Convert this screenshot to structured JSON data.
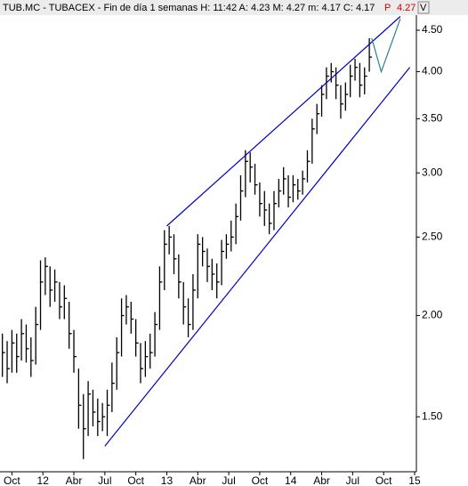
{
  "chart_data": {
    "type": "hlc",
    "header": {
      "title": "TUB.MC - TUBACEX - Fin de día 1 semanas  H: 11:42  A: 4.23  M: 4.27  m: 4.17  C: 4.17",
      "price_flag": "P",
      "price": "4.27",
      "mode": "V"
    },
    "log_scale": true,
    "color": "#000000",
    "ylim": [
      1.283,
      4.686
    ],
    "yticks": [
      {
        "value": 1.5,
        "label": "1.50"
      },
      {
        "value": 2.0,
        "label": "2.00"
      },
      {
        "value": 2.5,
        "label": "2.50"
      },
      {
        "value": 3.0,
        "label": "3.00"
      },
      {
        "value": 3.5,
        "label": "3.50"
      },
      {
        "value": 4.0,
        "label": "4.00"
      },
      {
        "value": 4.5,
        "label": "4.50"
      }
    ],
    "xlim": [
      0,
      175.5
    ],
    "xticks": [
      {
        "value": 5,
        "label": "Oct"
      },
      {
        "value": 18,
        "label": "12"
      },
      {
        "value": 31,
        "label": "Abr"
      },
      {
        "value": 44,
        "label": "Jul"
      },
      {
        "value": 57,
        "label": "Oct"
      },
      {
        "value": 70,
        "label": "13"
      },
      {
        "value": 83,
        "label": "Abr"
      },
      {
        "value": 96,
        "label": "Jul"
      },
      {
        "value": 109,
        "label": "Oct"
      },
      {
        "value": 122,
        "label": "14"
      },
      {
        "value": 135,
        "label": "Abr"
      },
      {
        "value": 148,
        "label": "Jul"
      },
      {
        "value": 161,
        "label": "Oct"
      },
      {
        "value": 174,
        "label": "15"
      }
    ],
    "x": [
      1,
      3,
      5,
      7,
      9,
      11,
      13,
      15,
      17,
      19,
      21,
      23,
      25,
      27,
      29,
      31,
      33,
      35,
      37,
      39,
      41,
      43,
      45,
      47,
      49,
      51,
      53,
      55,
      57,
      59,
      61,
      63,
      65,
      67,
      69,
      71,
      73,
      75,
      77,
      79,
      81,
      83,
      85,
      87,
      89,
      91,
      93,
      95,
      97,
      99,
      101,
      103,
      105,
      107,
      109,
      111,
      113,
      115,
      117,
      119,
      121,
      123,
      125,
      127,
      129,
      131,
      133,
      135,
      137,
      139,
      141,
      143,
      145,
      147,
      149,
      151,
      153,
      155
    ],
    "high": [
      1.9,
      1.86,
      1.92,
      1.9,
      1.98,
      1.95,
      1.88,
      2.05,
      2.34,
      2.36,
      2.3,
      2.28,
      2.2,
      2.18,
      2.08,
      1.92,
      1.72,
      1.6,
      1.66,
      1.62,
      1.58,
      1.56,
      1.62,
      1.75,
      1.88,
      2.1,
      2.12,
      2.08,
      1.98,
      1.85,
      1.86,
      1.9,
      2.02,
      2.3,
      2.55,
      2.58,
      2.52,
      2.38,
      2.2,
      2.1,
      2.25,
      2.52,
      2.5,
      2.42,
      2.35,
      2.32,
      2.48,
      2.52,
      2.62,
      2.75,
      2.98,
      3.2,
      3.18,
      3.08,
      2.92,
      2.85,
      2.75,
      2.85,
      2.95,
      3.05,
      2.98,
      2.98,
      2.95,
      3.02,
      3.2,
      3.5,
      3.65,
      3.85,
      4.05,
      4.1,
      4.05,
      3.85,
      3.88,
      4.08,
      4.15,
      4.1,
      4.05,
      4.4
    ],
    "low": [
      1.68,
      1.65,
      1.7,
      1.7,
      1.76,
      1.75,
      1.68,
      1.74,
      1.92,
      2.12,
      2.05,
      2.08,
      1.98,
      1.98,
      1.82,
      1.7,
      1.45,
      1.33,
      1.42,
      1.46,
      1.42,
      1.44,
      1.42,
      1.52,
      1.62,
      1.78,
      1.95,
      1.9,
      1.78,
      1.65,
      1.68,
      1.72,
      1.78,
      1.92,
      2.15,
      2.38,
      2.25,
      2.1,
      1.95,
      1.88,
      1.92,
      2.1,
      2.3,
      2.2,
      2.15,
      2.1,
      2.18,
      2.35,
      2.4,
      2.45,
      2.62,
      2.8,
      2.92,
      2.82,
      2.65,
      2.58,
      2.52,
      2.55,
      2.72,
      2.82,
      2.72,
      2.76,
      2.78,
      2.82,
      2.92,
      3.08,
      3.35,
      3.52,
      3.7,
      3.88,
      3.7,
      3.5,
      3.58,
      3.72,
      3.9,
      3.72,
      3.75,
      4.0
    ],
    "close": [
      1.8,
      1.72,
      1.85,
      1.78,
      1.9,
      1.82,
      1.76,
      1.95,
      2.2,
      2.3,
      2.15,
      2.2,
      2.05,
      2.1,
      1.9,
      1.78,
      1.55,
      1.45,
      1.6,
      1.52,
      1.48,
      1.5,
      1.55,
      1.65,
      1.8,
      2.0,
      2.05,
      1.98,
      1.85,
      1.72,
      1.78,
      1.8,
      1.95,
      2.2,
      2.45,
      2.5,
      2.35,
      2.2,
      2.05,
      1.95,
      2.15,
      2.45,
      2.4,
      2.3,
      2.25,
      2.2,
      2.4,
      2.45,
      2.5,
      2.65,
      2.85,
      3.1,
      3.05,
      2.9,
      2.75,
      2.7,
      2.6,
      2.75,
      2.85,
      2.95,
      2.8,
      2.9,
      2.85,
      2.95,
      3.1,
      3.4,
      3.55,
      3.75,
      3.95,
      4.0,
      3.85,
      3.65,
      3.75,
      3.95,
      4.05,
      3.85,
      3.95,
      4.17
    ],
    "trendlines": [
      {
        "color": "#0000c0",
        "x": [
          70,
          168
        ],
        "y": [
          2.58,
          4.68
        ]
      },
      {
        "color": "#0000c0",
        "x": [
          44,
          172
        ],
        "y": [
          1.38,
          4.05
        ]
      },
      {
        "color": "#2a7f8f",
        "x": [
          156,
          160,
          168
        ],
        "y": [
          4.4,
          4.0,
          4.65
        ]
      }
    ]
  }
}
